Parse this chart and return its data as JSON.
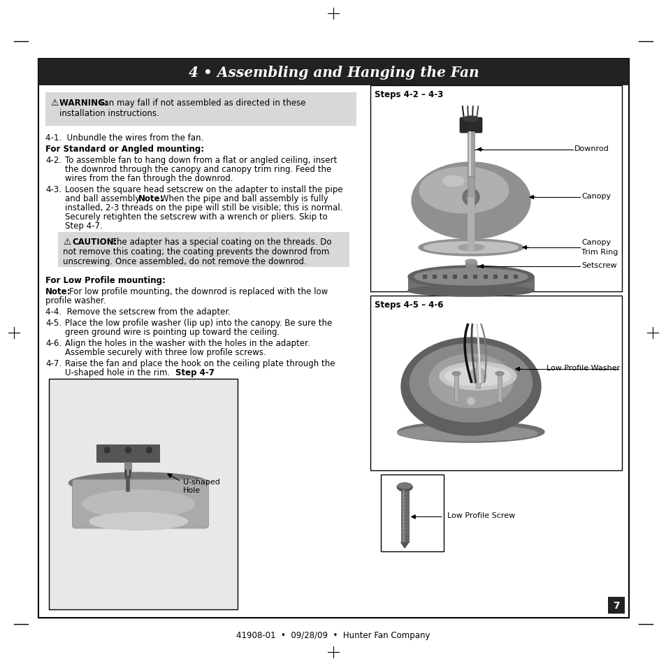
{
  "page_bg": "#ffffff",
  "header_bg": "#222222",
  "header_text": "4 • Assembling and Hanging the Fan",
  "header_text_color": "#ffffff",
  "warning_bg": "#d8d8d8",
  "caution_bg": "#d8d8d8",
  "body_text_color": "#1a1a1a",
  "border_color": "#000000",
  "footer_text": "41908-01  •  09/28/09  •  Hunter Fan Company",
  "page_number": "7",
  "steps423_label": "Steps 4-2 – 4-3",
  "steps456_label": "Steps 4-5 – 4-6",
  "label_downrod": "Downrod",
  "label_canopy": "Canopy",
  "label_canopy_trim": "Canopy",
  "label_trim_ring": "Trim Ring",
  "label_setscrew": "Setscrew",
  "label_low_profile_washer": "Low Profile Washer",
  "label_low_profile_screw": "Low Profile Screw",
  "step47_label": "Step 4-7",
  "ushape_label_line1": "U-shaped",
  "ushape_label_line2": "Hole"
}
